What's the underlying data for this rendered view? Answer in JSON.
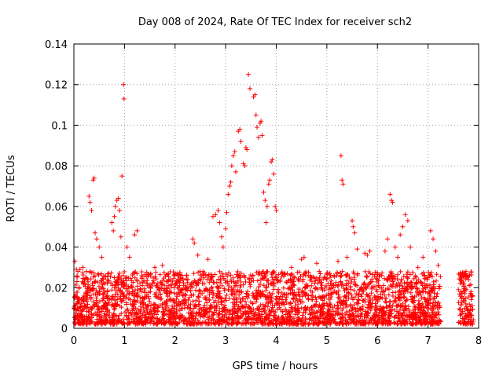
{
  "chart_data": {
    "type": "scatter",
    "title": "Day 008 of 2024, Rate Of TEC Index for receiver sch2",
    "xlabel": "GPS time / hours",
    "ylabel": "ROTI / TECUs",
    "xlim": [
      0,
      8
    ],
    "ylim": [
      0,
      0.14
    ],
    "xticks": [
      "0",
      "1",
      "2",
      "3",
      "4",
      "5",
      "6",
      "7",
      "8"
    ],
    "yticks": [
      "0",
      "0.02",
      "0.04",
      "0.06",
      "0.08",
      "0.1",
      "0.12",
      "0.14"
    ],
    "grid": true,
    "marker": "+",
    "color": "#ff0000",
    "series": [
      {
        "name": "ROTI",
        "points": [
          [
            0.02,
            0.033
          ],
          [
            0.05,
            0.029
          ],
          [
            0.08,
            0.028
          ],
          [
            0.12,
            0.029
          ],
          [
            0.18,
            0.03
          ],
          [
            0.3,
            0.065
          ],
          [
            0.32,
            0.062
          ],
          [
            0.35,
            0.058
          ],
          [
            0.38,
            0.073
          ],
          [
            0.4,
            0.074
          ],
          [
            0.42,
            0.047
          ],
          [
            0.45,
            0.044
          ],
          [
            0.5,
            0.04
          ],
          [
            0.55,
            0.035
          ],
          [
            0.75,
            0.052
          ],
          [
            0.78,
            0.048
          ],
          [
            0.8,
            0.055
          ],
          [
            0.82,
            0.06
          ],
          [
            0.85,
            0.063
          ],
          [
            0.88,
            0.064
          ],
          [
            0.9,
            0.058
          ],
          [
            0.93,
            0.045
          ],
          [
            0.95,
            0.075
          ],
          [
            0.98,
            0.12
          ],
          [
            0.99,
            0.113
          ],
          [
            1.05,
            0.04
          ],
          [
            1.1,
            0.035
          ],
          [
            1.2,
            0.046
          ],
          [
            1.25,
            0.048
          ],
          [
            1.6,
            0.03
          ],
          [
            1.75,
            0.031
          ],
          [
            1.9,
            0.024
          ],
          [
            2.05,
            0.02
          ],
          [
            2.35,
            0.044
          ],
          [
            2.38,
            0.042
          ],
          [
            2.45,
            0.036
          ],
          [
            2.55,
            0.028
          ],
          [
            2.65,
            0.034
          ],
          [
            2.75,
            0.055
          ],
          [
            2.8,
            0.056
          ],
          [
            2.85,
            0.058
          ],
          [
            2.88,
            0.052
          ],
          [
            2.92,
            0.045
          ],
          [
            2.95,
            0.04
          ],
          [
            3.0,
            0.049
          ],
          [
            3.02,
            0.057
          ],
          [
            3.05,
            0.066
          ],
          [
            3.08,
            0.07
          ],
          [
            3.1,
            0.072
          ],
          [
            3.12,
            0.08
          ],
          [
            3.15,
            0.085
          ],
          [
            3.18,
            0.087
          ],
          [
            3.2,
            0.077
          ],
          [
            3.25,
            0.097
          ],
          [
            3.28,
            0.098
          ],
          [
            3.3,
            0.092
          ],
          [
            3.35,
            0.081
          ],
          [
            3.38,
            0.08
          ],
          [
            3.4,
            0.089
          ],
          [
            3.42,
            0.088
          ],
          [
            3.45,
            0.125
          ],
          [
            3.48,
            0.118
          ],
          [
            3.55,
            0.114
          ],
          [
            3.58,
            0.115
          ],
          [
            3.6,
            0.105
          ],
          [
            3.62,
            0.099
          ],
          [
            3.65,
            0.094
          ],
          [
            3.68,
            0.101
          ],
          [
            3.7,
            0.102
          ],
          [
            3.72,
            0.095
          ],
          [
            3.75,
            0.067
          ],
          [
            3.78,
            0.063
          ],
          [
            3.8,
            0.052
          ],
          [
            3.82,
            0.06
          ],
          [
            3.85,
            0.071
          ],
          [
            3.87,
            0.073
          ],
          [
            3.9,
            0.082
          ],
          [
            3.92,
            0.083
          ],
          [
            3.95,
            0.076
          ],
          [
            3.98,
            0.06
          ],
          [
            4.0,
            0.058
          ],
          [
            4.3,
            0.03
          ],
          [
            4.5,
            0.034
          ],
          [
            4.55,
            0.035
          ],
          [
            4.8,
            0.032
          ],
          [
            5.0,
            0.027
          ],
          [
            5.22,
            0.033
          ],
          [
            5.28,
            0.085
          ],
          [
            5.3,
            0.073
          ],
          [
            5.32,
            0.071
          ],
          [
            5.4,
            0.035
          ],
          [
            5.5,
            0.053
          ],
          [
            5.52,
            0.05
          ],
          [
            5.55,
            0.047
          ],
          [
            5.6,
            0.039
          ],
          [
            5.75,
            0.037
          ],
          [
            5.8,
            0.036
          ],
          [
            5.85,
            0.038
          ],
          [
            6.15,
            0.038
          ],
          [
            6.2,
            0.044
          ],
          [
            6.25,
            0.066
          ],
          [
            6.28,
            0.063
          ],
          [
            6.3,
            0.062
          ],
          [
            6.35,
            0.04
          ],
          [
            6.4,
            0.035
          ],
          [
            6.45,
            0.046
          ],
          [
            6.5,
            0.05
          ],
          [
            6.55,
            0.056
          ],
          [
            6.6,
            0.053
          ],
          [
            6.65,
            0.04
          ],
          [
            6.8,
            0.03
          ],
          [
            6.9,
            0.035
          ],
          [
            7.05,
            0.048
          ],
          [
            7.1,
            0.044
          ],
          [
            7.15,
            0.038
          ],
          [
            7.2,
            0.031
          ],
          [
            7.6,
            0.019
          ],
          [
            7.65,
            0.018
          ],
          [
            7.7,
            0.022
          ],
          [
            7.75,
            0.028
          ],
          [
            7.8,
            0.024
          ],
          [
            7.82,
            0.026
          ],
          [
            7.85,
            0.018
          ]
        ]
      }
    ]
  }
}
